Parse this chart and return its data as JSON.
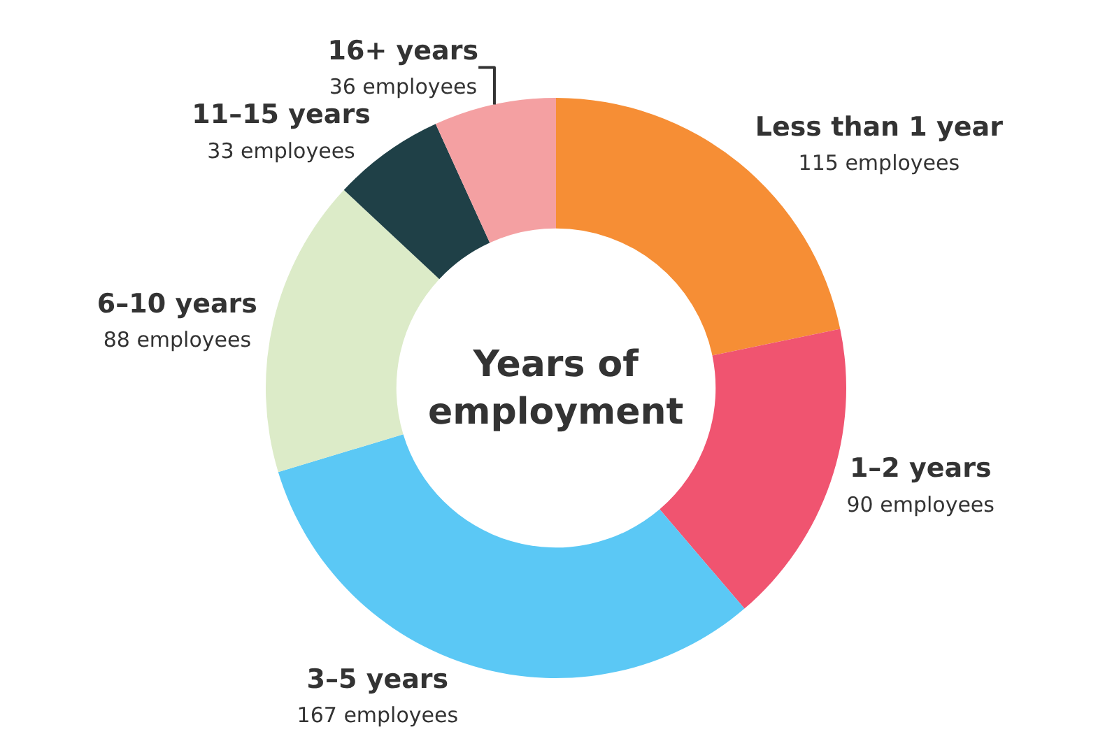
{
  "chart_data": {
    "type": "donut",
    "title": "Years of employment",
    "categories": [
      "Less than 1 year",
      "1–2 years",
      "3–5 years",
      "6–10 years",
      "11–15 years",
      "16+ years"
    ],
    "values": [
      115,
      90,
      167,
      88,
      33,
      36
    ],
    "value_labels": [
      "115 employees",
      "90 employees",
      "167 employees",
      "88 employees",
      "33 employees",
      "36 employees"
    ],
    "colors": [
      "#f68e35",
      "#f05470",
      "#5bc8f5",
      "#dcebc8",
      "#1f4047",
      "#f4a0a2"
    ],
    "legend": false
  }
}
